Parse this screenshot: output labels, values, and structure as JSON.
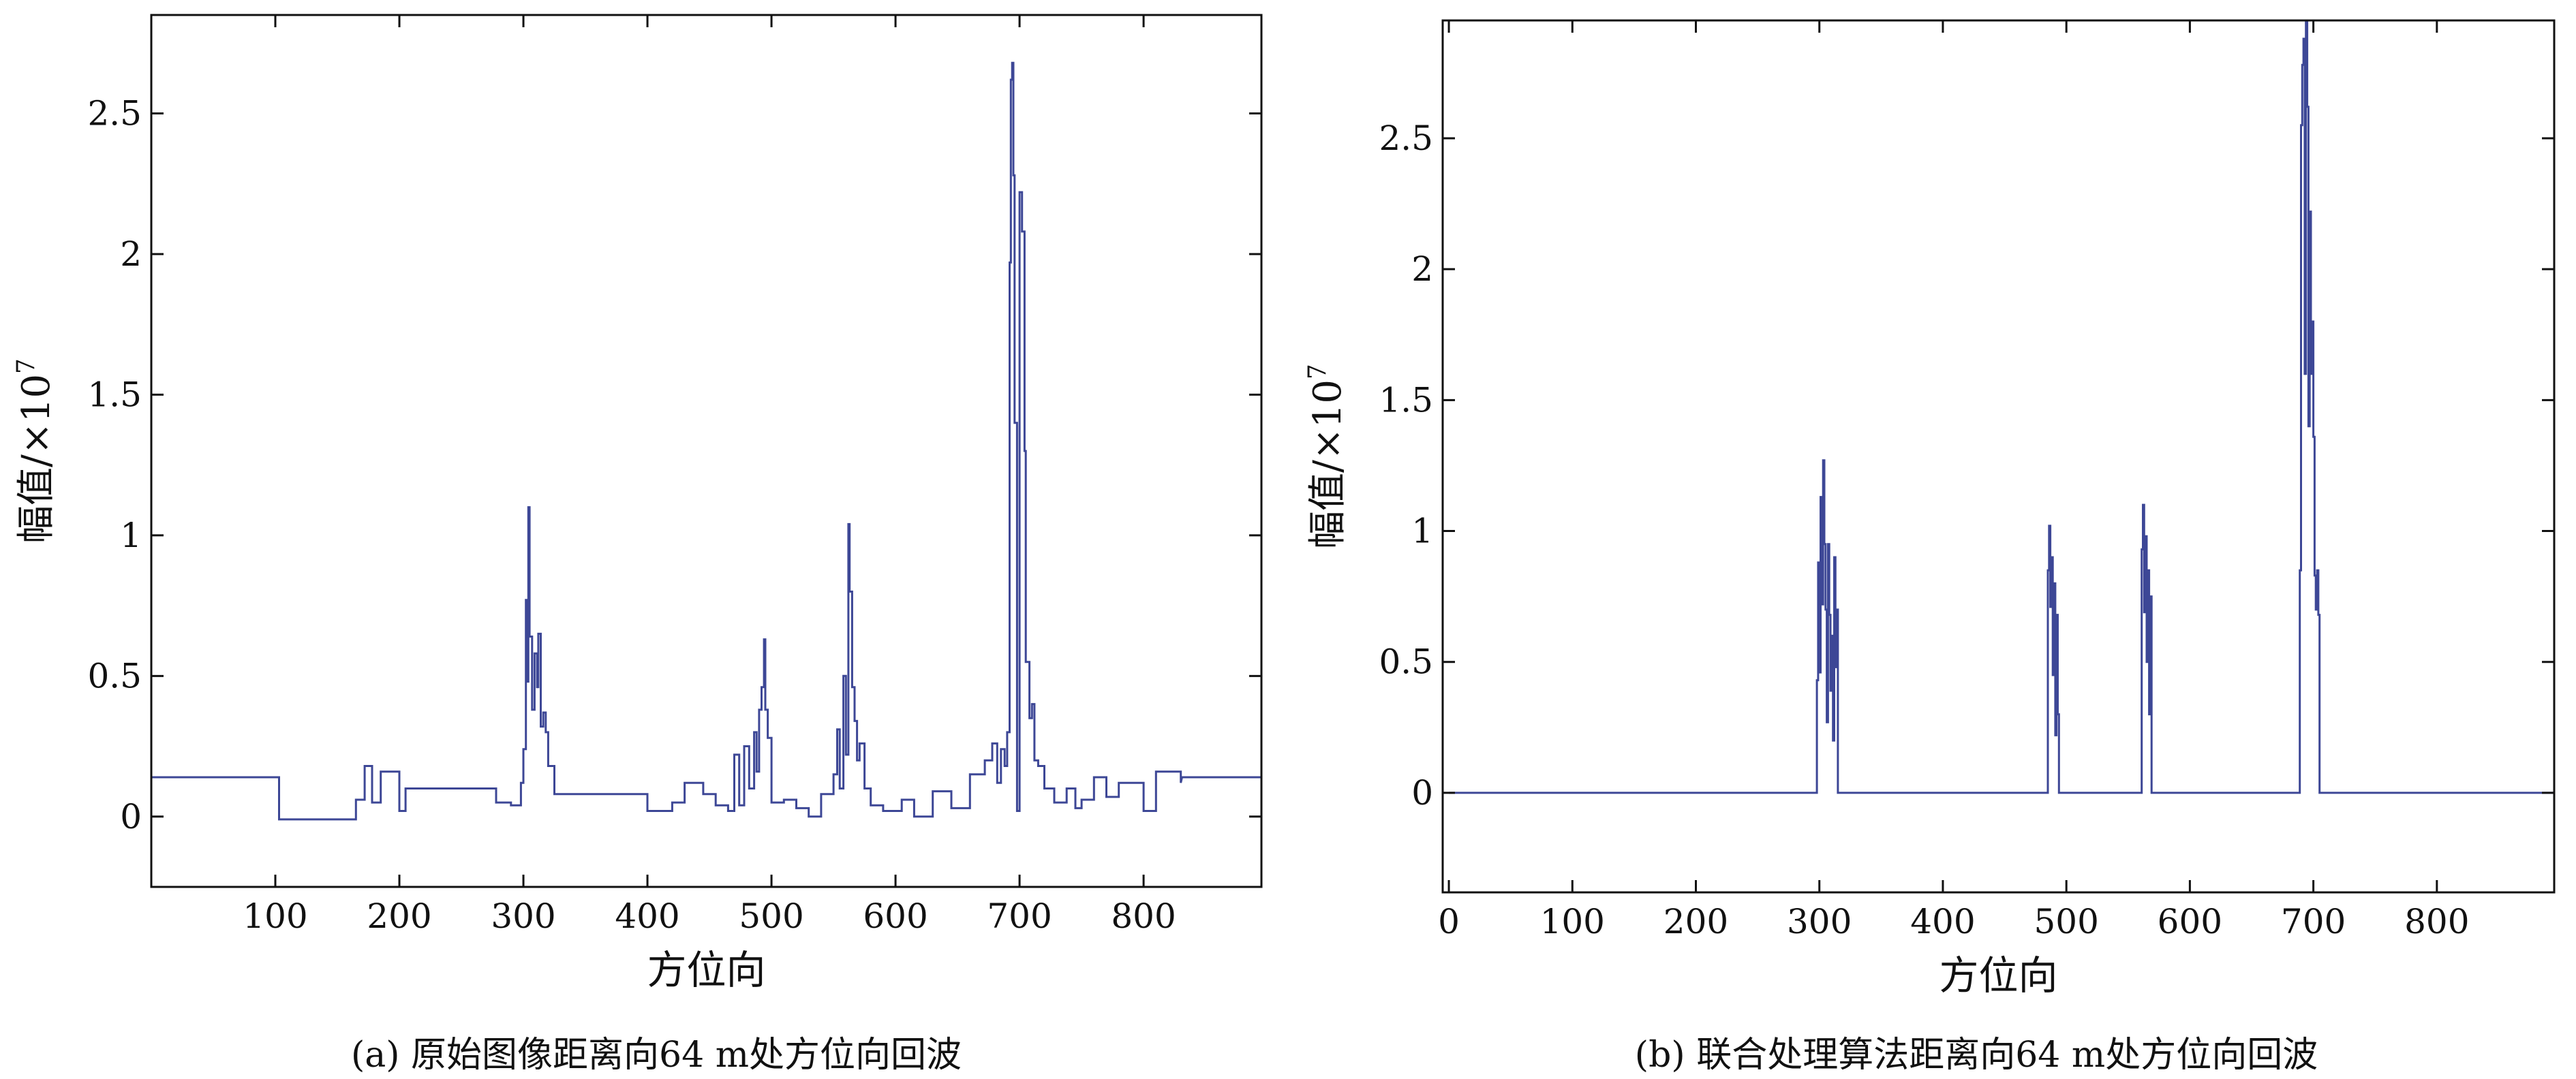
{
  "chart_data": [
    {
      "type": "line",
      "caption": "(a) 原始图像距离向64 m处方位向回波",
      "xlabel": "方位向",
      "ylabel": "幅值/×10",
      "ylabel_exp": "7",
      "xlim": [
        0,
        895
      ],
      "ylim": [
        -0.25,
        2.85
      ],
      "xticks": [
        100,
        200,
        300,
        400,
        500,
        600,
        700,
        800
      ],
      "yticks": [
        0,
        0.5,
        1,
        1.5,
        2,
        2.5
      ],
      "ytick_labels": [
        "0",
        "0.5",
        "1",
        "1.5",
        "2",
        "2.5"
      ],
      "line_color": "#3d4796",
      "baseline": 0.14,
      "spikes": [
        [
          103,
          -0.01
        ],
        [
          165,
          0.06
        ],
        [
          172,
          0.18
        ],
        [
          178,
          0.05
        ],
        [
          185,
          0.16
        ],
        [
          200,
          0.02
        ],
        [
          205,
          0.1
        ],
        [
          278,
          0.05
        ],
        [
          290,
          0.04
        ],
        [
          298,
          0.12
        ],
        [
          300,
          0.24
        ],
        [
          302,
          0.77
        ],
        [
          303,
          0.48
        ],
        [
          304,
          1.1
        ],
        [
          305,
          0.64
        ],
        [
          307,
          0.38
        ],
        [
          309,
          0.58
        ],
        [
          311,
          0.46
        ],
        [
          312,
          0.65
        ],
        [
          314,
          0.32
        ],
        [
          316,
          0.37
        ],
        [
          318,
          0.3
        ],
        [
          320,
          0.18
        ],
        [
          325,
          0.08
        ],
        [
          400,
          0.02
        ],
        [
          420,
          0.05
        ],
        [
          430,
          0.12
        ],
        [
          445,
          0.08
        ],
        [
          455,
          0.04
        ],
        [
          465,
          0.02
        ],
        [
          470,
          0.22
        ],
        [
          474,
          0.04
        ],
        [
          478,
          0.25
        ],
        [
          482,
          0.1
        ],
        [
          486,
          0.3
        ],
        [
          488,
          0.16
        ],
        [
          490,
          0.38
        ],
        [
          492,
          0.46
        ],
        [
          494,
          0.63
        ],
        [
          495,
          0.38
        ],
        [
          497,
          0.28
        ],
        [
          500,
          0.05
        ],
        [
          510,
          0.06
        ],
        [
          520,
          0.03
        ],
        [
          530,
          0.0
        ],
        [
          540,
          0.08
        ],
        [
          550,
          0.15
        ],
        [
          553,
          0.31
        ],
        [
          555,
          0.1
        ],
        [
          558,
          0.5
        ],
        [
          560,
          0.22
        ],
        [
          562,
          1.04
        ],
        [
          563,
          0.8
        ],
        [
          565,
          0.46
        ],
        [
          567,
          0.34
        ],
        [
          569,
          0.2
        ],
        [
          571,
          0.26
        ],
        [
          575,
          0.1
        ],
        [
          580,
          0.04
        ],
        [
          590,
          0.02
        ],
        [
          605,
          0.06
        ],
        [
          615,
          0.0
        ],
        [
          630,
          0.09
        ],
        [
          645,
          0.03
        ],
        [
          660,
          0.15
        ],
        [
          672,
          0.2
        ],
        [
          678,
          0.26
        ],
        [
          682,
          0.12
        ],
        [
          685,
          0.24
        ],
        [
          688,
          0.18
        ],
        [
          690,
          0.3
        ],
        [
          692,
          1.97
        ],
        [
          693,
          2.62
        ],
        [
          694,
          2.68
        ],
        [
          695,
          2.28
        ],
        [
          696,
          1.4
        ],
        [
          698,
          0.02
        ],
        [
          700,
          2.22
        ],
        [
          702,
          2.08
        ],
        [
          704,
          1.3
        ],
        [
          705,
          0.55
        ],
        [
          706,
          0.55
        ],
        [
          708,
          0.35
        ],
        [
          710,
          0.4
        ],
        [
          712,
          0.2
        ],
        [
          715,
          0.18
        ],
        [
          720,
          0.1
        ],
        [
          728,
          0.05
        ],
        [
          738,
          0.1
        ],
        [
          745,
          0.03
        ],
        [
          750,
          0.06
        ],
        [
          760,
          0.14
        ],
        [
          770,
          0.07
        ],
        [
          780,
          0.12
        ],
        [
          800,
          0.02
        ],
        [
          810,
          0.16
        ],
        [
          830,
          0.12
        ]
      ]
    },
    {
      "type": "line",
      "caption": "(b) 联合处理算法距离向64 m处方位向回波",
      "xlabel": "方位向",
      "ylabel": "幅值/×10",
      "ylabel_exp": "7",
      "xlim": [
        -5,
        895
      ],
      "ylim": [
        -0.38,
        2.95
      ],
      "xticks": [
        0,
        100,
        200,
        300,
        400,
        500,
        600,
        700,
        800
      ],
      "yticks": [
        0,
        0.5,
        1,
        1.5,
        2,
        2.5
      ],
      "ytick_labels": [
        "0",
        "0.5",
        "1",
        "1.5",
        "2",
        "2.5"
      ],
      "line_color": "#3d4796",
      "baseline": 0.0,
      "spikes": [
        [
          297,
          0.0
        ],
        [
          298,
          0.43
        ],
        [
          299,
          0.88
        ],
        [
          300,
          0.46
        ],
        [
          301,
          1.13
        ],
        [
          302,
          0.72
        ],
        [
          303,
          1.27
        ],
        [
          304,
          0.95
        ],
        [
          305,
          0.7
        ],
        [
          306,
          0.27
        ],
        [
          307,
          0.95
        ],
        [
          308,
          0.68
        ],
        [
          309,
          0.39
        ],
        [
          310,
          0.6
        ],
        [
          311,
          0.2
        ],
        [
          312,
          0.9
        ],
        [
          313,
          0.48
        ],
        [
          314,
          0.7
        ],
        [
          315,
          0.0
        ],
        [
          316,
          0.0
        ],
        [
          484,
          0.0
        ],
        [
          485,
          0.85
        ],
        [
          486,
          1.02
        ],
        [
          487,
          0.71
        ],
        [
          488,
          0.9
        ],
        [
          489,
          0.45
        ],
        [
          490,
          0.8
        ],
        [
          491,
          0.22
        ],
        [
          492,
          0.68
        ],
        [
          493,
          0.3
        ],
        [
          494,
          0.0
        ],
        [
          560,
          0.0
        ],
        [
          561,
          0.93
        ],
        [
          562,
          1.1
        ],
        [
          563,
          0.69
        ],
        [
          564,
          0.98
        ],
        [
          565,
          0.5
        ],
        [
          566,
          0.85
        ],
        [
          567,
          0.3
        ],
        [
          568,
          0.75
        ],
        [
          569,
          0.0
        ],
        [
          688,
          0.0
        ],
        [
          689,
          0.85
        ],
        [
          690,
          2.55
        ],
        [
          691,
          2.78
        ],
        [
          692,
          2.88
        ],
        [
          693,
          1.6
        ],
        [
          694,
          2.95
        ],
        [
          695,
          2.62
        ],
        [
          696,
          1.4
        ],
        [
          697,
          2.22
        ],
        [
          698,
          1.6
        ],
        [
          699,
          1.8
        ],
        [
          700,
          1.36
        ],
        [
          701,
          0.83
        ],
        [
          702,
          0.7
        ],
        [
          703,
          0.85
        ],
        [
          704,
          0.68
        ],
        [
          705,
          0.0
        ]
      ]
    }
  ]
}
